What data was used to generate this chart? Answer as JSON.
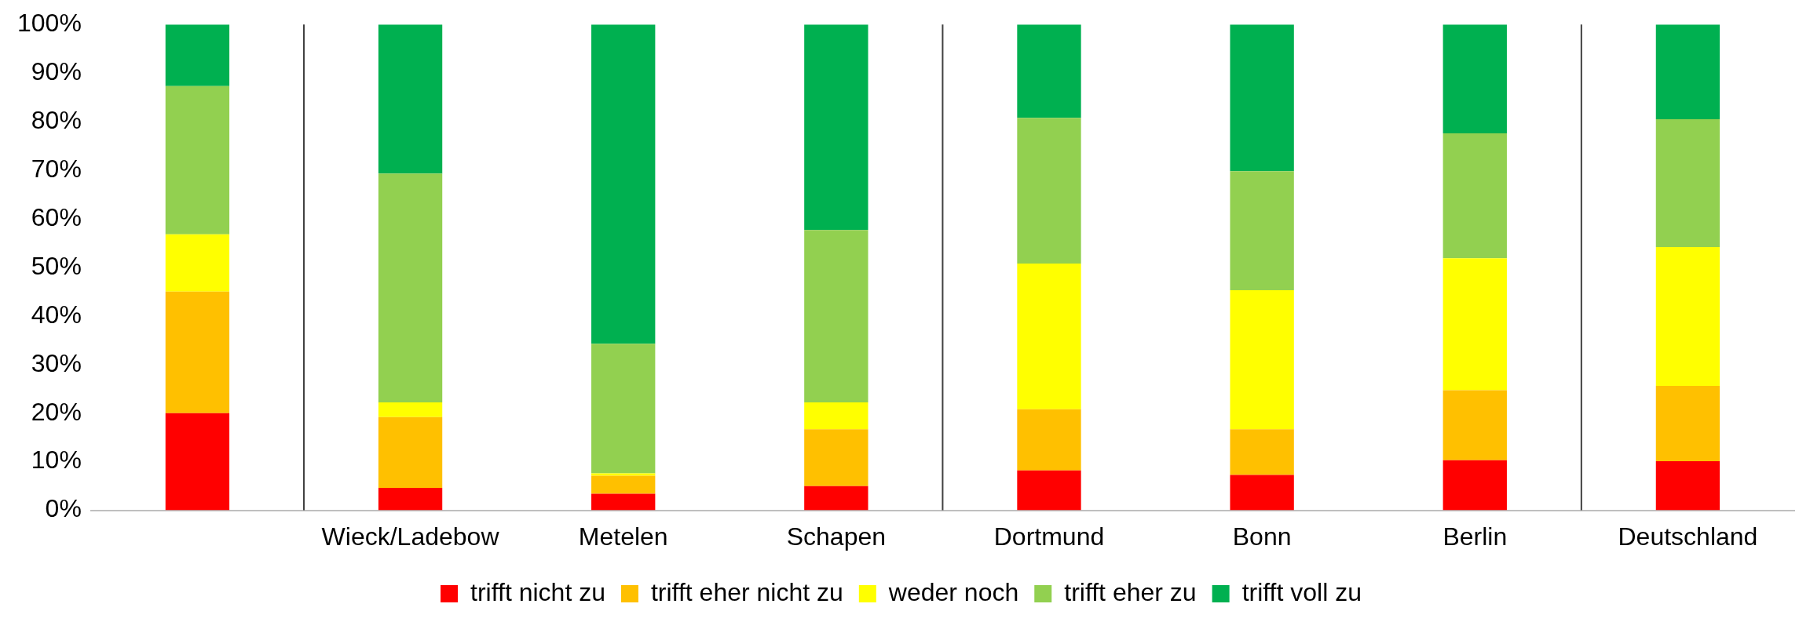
{
  "chart_data": {
    "type": "bar",
    "stacked": true,
    "categories": [
      null,
      "Wieck/Ladebow",
      "Metelen",
      "Schapen",
      "Dortmund",
      "Bonn",
      "Berlin",
      "Deutschland"
    ],
    "series": [
      {
        "name": "trifft nicht zu",
        "color": "#ff0000",
        "values": [
          20,
          4.6,
          3.4,
          5,
          8.2,
          7.3,
          10.3,
          10.1
        ]
      },
      {
        "name": "trifft eher nicht zu",
        "color": "#ffc000",
        "values": [
          25,
          14.6,
          3.7,
          11.7,
          12.6,
          9.4,
          14.4,
          15.5
        ]
      },
      {
        "name": "weder noch",
        "color": "#ffff00",
        "values": [
          11.8,
          3,
          0.5,
          5.5,
          30,
          28.6,
          27.2,
          28.6
        ]
      },
      {
        "name": "trifft eher zu",
        "color": "#92d050",
        "values": [
          30.5,
          47.1,
          26.7,
          35.5,
          30,
          24.5,
          25.7,
          26.3
        ]
      },
      {
        "name": "trifft voll zu",
        "color": "#00b050",
        "values": [
          12.7,
          30.7,
          65.7,
          42.3,
          19.2,
          30.2,
          22.4,
          19.5
        ]
      }
    ],
    "ylim": [
      0,
      100
    ],
    "yticks": [
      {
        "value": 0,
        "label": "0%"
      },
      {
        "value": 10,
        "label": "10%"
      },
      {
        "value": 20,
        "label": "20%"
      },
      {
        "value": 30,
        "label": "30%"
      },
      {
        "value": 40,
        "label": "40%"
      },
      {
        "value": 50,
        "label": "50%"
      },
      {
        "value": 60,
        "label": "60%"
      },
      {
        "value": 70,
        "label": "70%"
      },
      {
        "value": 80,
        "label": "80%"
      },
      {
        "value": 90,
        "label": "90%"
      },
      {
        "value": 100,
        "label": "100%"
      }
    ],
    "grid": false,
    "legend": "bottom"
  }
}
